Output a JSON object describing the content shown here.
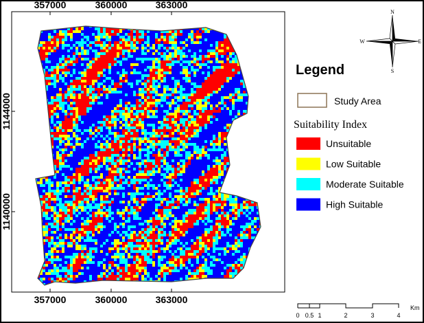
{
  "map": {
    "top_axis": [
      "357000",
      "360000",
      "363000"
    ],
    "bottom_axis": [
      "357000",
      "360000",
      "363000"
    ],
    "left_axis": [
      "1144000",
      "1140000"
    ],
    "north_arrow": {
      "n": "N",
      "s": "S",
      "e": "E",
      "w": "W"
    },
    "legend": {
      "title": "Legend",
      "study_area": {
        "label": "Study Area",
        "color": "#8b7355"
      },
      "index_title": "Suitability Index",
      "classes": [
        {
          "label": "Unsuitable",
          "color": "#ff0000"
        },
        {
          "label": "Low Suitable",
          "color": "#ffff00"
        },
        {
          "label": "Moderate Suitable",
          "color": "#00ffff"
        },
        {
          "label": "High Suitable",
          "color": "#0000ff"
        }
      ]
    },
    "scale_bar": {
      "labels": [
        "0",
        "0.5",
        "1",
        "2",
        "3",
        "4"
      ],
      "unit": "Km"
    }
  }
}
